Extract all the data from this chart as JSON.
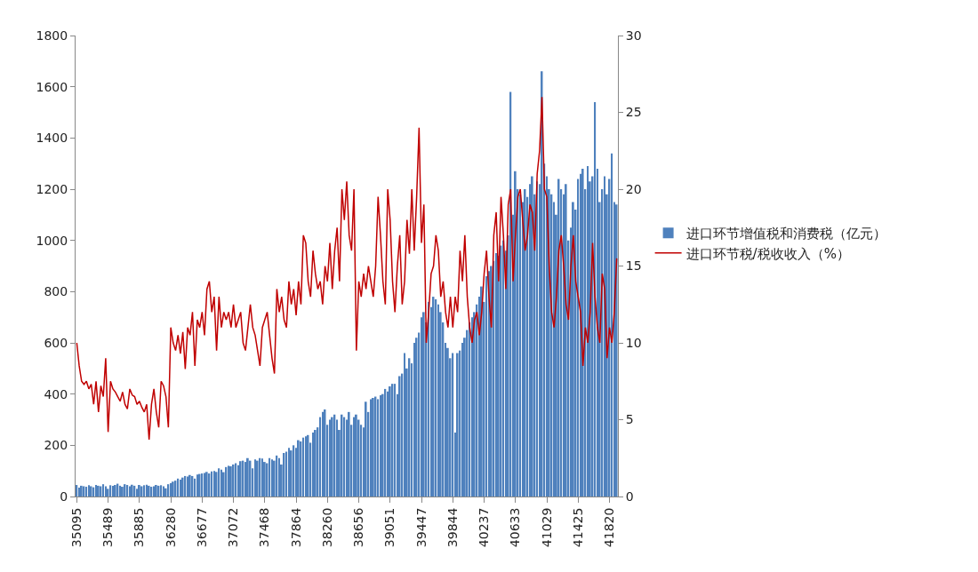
{
  "chart_data": {
    "type": "bar",
    "categories": [
      "35095",
      null,
      null,
      null,
      null,
      null,
      null,
      null,
      null,
      null,
      null,
      null,
      null,
      "35489",
      null,
      null,
      null,
      null,
      null,
      null,
      null,
      null,
      null,
      null,
      null,
      null,
      "35885",
      null,
      null,
      null,
      null,
      null,
      null,
      null,
      null,
      null,
      null,
      null,
      null,
      "36280",
      null,
      null,
      null,
      null,
      null,
      null,
      null,
      null,
      null,
      null,
      null,
      null,
      "36677",
      null,
      null,
      null,
      null,
      null,
      null,
      null,
      null,
      null,
      null,
      null,
      null,
      "37072",
      null,
      null,
      null,
      null,
      null,
      null,
      null,
      null,
      null,
      null,
      null,
      null,
      "37468",
      null,
      null,
      null,
      null,
      null,
      null,
      null,
      null,
      null,
      null,
      null,
      null,
      "37864",
      null,
      null,
      null,
      null,
      null,
      null,
      null,
      null,
      null,
      null,
      null,
      null,
      "38260",
      null,
      null,
      null,
      null,
      null,
      null,
      null,
      null,
      null,
      null,
      null,
      null,
      "38656",
      null,
      null,
      null,
      null,
      null,
      null,
      null,
      null,
      null,
      null,
      null,
      null,
      "39051",
      null,
      null,
      null,
      null,
      null,
      null,
      null,
      null,
      null,
      null,
      null,
      null,
      "39447",
      null,
      null,
      null,
      null,
      null,
      null,
      null,
      null,
      null,
      null,
      null,
      null,
      "39844",
      null,
      null,
      null,
      null,
      null,
      null,
      null,
      null,
      null,
      null,
      null,
      null,
      "40237",
      null,
      null,
      null,
      null,
      null,
      null,
      null,
      null,
      null,
      null,
      null,
      null,
      "40633",
      null,
      null,
      null,
      null,
      null,
      null,
      null,
      null,
      null,
      null,
      null,
      null,
      "41029",
      null,
      null,
      null,
      null,
      null,
      null,
      null,
      null,
      null,
      null,
      null,
      null,
      "41425",
      null,
      null,
      null,
      null,
      null,
      null,
      null,
      null,
      null,
      null,
      null,
      null,
      "41820",
      null,
      null,
      null
    ],
    "series": [
      {
        "name": "进口环节增值税和消费税（亿元）",
        "color": "#4f81bd",
        "values": [
          45,
          35,
          42,
          40,
          38,
          44,
          40,
          36,
          45,
          42,
          40,
          48,
          40,
          30,
          44,
          42,
          45,
          50,
          42,
          38,
          48,
          45,
          40,
          46,
          42,
          30,
          45,
          40,
          44,
          46,
          42,
          38,
          40,
          45,
          42,
          44,
          40,
          32,
          48,
          52,
          58,
          62,
          70,
          66,
          74,
          80,
          78,
          84,
          80,
          70,
          86,
          88,
          90,
          92,
          96,
          90,
          98,
          100,
          96,
          110,
          105,
          95,
          115,
          120,
          118,
          125,
          130,
          122,
          138,
          140,
          135,
          150,
          140,
          110,
          145,
          140,
          150,
          148,
          135,
          130,
          150,
          145,
          140,
          160,
          150,
          125,
          170,
          175,
          190,
          180,
          200,
          190,
          220,
          215,
          230,
          235,
          240,
          210,
          250,
          260,
          270,
          310,
          330,
          340,
          280,
          300,
          310,
          320,
          300,
          260,
          320,
          310,
          300,
          330,
          280,
          310,
          320,
          300,
          280,
          270,
          370,
          330,
          380,
          385,
          390,
          380,
          395,
          400,
          420,
          410,
          430,
          440,
          440,
          400,
          470,
          480,
          560,
          500,
          540,
          520,
          600,
          620,
          640,
          700,
          720,
          680,
          760,
          740,
          780,
          770,
          750,
          720,
          680,
          600,
          580,
          540,
          560,
          250,
          560,
          570,
          600,
          620,
          650,
          680,
          700,
          720,
          750,
          780,
          820,
          760,
          860,
          880,
          900,
          920,
          950,
          940,
          980,
          1000,
          960,
          1020,
          1580,
          1100,
          1270,
          1200,
          1180,
          1150,
          1200,
          1170,
          1220,
          1250,
          1180,
          1230,
          1220,
          1660,
          1300,
          1250,
          1200,
          1180,
          1150,
          1100,
          1240,
          1200,
          1180,
          1220,
          1000,
          1050,
          1150,
          1120,
          1240,
          1260,
          1280,
          1200,
          1290,
          1230,
          1250,
          1540,
          1280,
          1150,
          1200,
          1250,
          1180,
          1240,
          1340,
          1150,
          1140
        ]
      },
      {
        "name": "进口环节税/税收收入（%）",
        "type": "line",
        "axis": "y2",
        "color": "#c00000",
        "values": [
          10,
          8.5,
          7.5,
          7.3,
          7.5,
          7.0,
          7.3,
          6.0,
          7.5,
          5.5,
          7.2,
          6.5,
          9,
          4.2,
          7.5,
          7.0,
          6.8,
          6.5,
          6.2,
          6.8,
          6.0,
          5.7,
          7.0,
          6.6,
          6.5,
          6.0,
          6.2,
          5.8,
          5.5,
          6.0,
          3.7,
          6.0,
          7.0,
          5.5,
          4.5,
          7.5,
          7.2,
          6.5,
          4.5,
          11,
          10,
          9.5,
          10.5,
          9.3,
          10.7,
          8.3,
          11,
          10.5,
          12,
          8.5,
          11.5,
          11,
          12,
          10.5,
          13.5,
          14,
          12,
          13,
          9.5,
          13,
          11,
          12,
          11.5,
          12,
          11,
          12.5,
          11,
          11.5,
          12,
          10,
          9.5,
          11,
          12.5,
          11,
          10.5,
          9.5,
          8.5,
          11,
          11.5,
          12,
          10.5,
          9,
          8,
          13.5,
          12,
          13,
          11.5,
          11,
          14,
          12.5,
          13.5,
          11.8,
          14,
          12.5,
          17,
          16.5,
          14,
          13,
          16,
          14.5,
          13.5,
          14,
          12.5,
          15,
          14,
          16.5,
          13.5,
          16,
          17.5,
          14,
          20,
          18,
          20.5,
          17,
          16,
          20,
          9.5,
          14,
          13,
          14.5,
          13.5,
          15,
          14,
          13,
          15,
          19.5,
          17,
          14,
          12.5,
          20,
          18,
          14,
          12,
          15,
          17,
          12.5,
          14,
          18,
          15.8,
          20,
          16,
          19.5,
          24,
          16.5,
          19,
          10,
          12,
          14.5,
          15,
          17,
          16,
          13,
          14,
          12,
          11,
          13,
          11,
          13,
          12,
          16,
          14,
          17,
          13,
          11,
          10,
          11.5,
          12,
          10.5,
          12,
          14.5,
          16,
          13,
          11,
          17,
          18.5,
          14,
          19.5,
          17,
          13.5,
          19,
          20,
          14,
          17,
          19.5,
          20,
          18,
          16,
          17,
          19,
          18.5,
          16,
          21,
          22.5,
          26,
          20,
          19.5,
          15,
          12,
          11,
          13,
          16,
          17,
          15,
          12.5,
          11.5,
          15,
          17,
          14,
          13,
          12,
          8.5,
          11,
          10,
          12,
          16.5,
          13,
          11,
          10,
          14.5,
          13.5,
          9,
          11,
          10,
          12,
          15.5
        ]
      }
    ],
    "ylim": [
      0,
      1800
    ],
    "yticks": [
      0,
      200,
      400,
      600,
      800,
      1000,
      1200,
      1400,
      1600,
      1800
    ],
    "y2lim": [
      0,
      30
    ],
    "y2ticks": [
      0,
      5,
      10,
      15,
      20,
      25,
      30
    ],
    "legend": "right"
  }
}
